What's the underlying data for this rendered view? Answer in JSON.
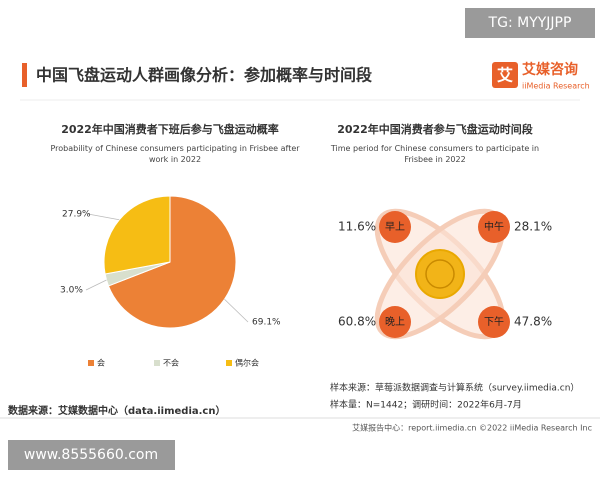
{
  "watermark_top": "TG: MYYJJPP",
  "watermark_bottom": "www.8555660.com",
  "header": {
    "title": "中国飞盘运动人群画像分析：参加概率与时间段",
    "logo_mark": "艾",
    "logo_cn": "艾媒咨询",
    "logo_en": "iiMedia Research"
  },
  "chart_data": [
    {
      "type": "pie",
      "title": "2022年中国消费者下班后参与飞盘运动概率",
      "subtitle": "Probability of Chinese consumers participating in Frisbee after work in 2022",
      "categories": [
        "会",
        "不会",
        "偶尔会"
      ],
      "values": [
        69.1,
        3.0,
        27.9
      ],
      "value_labels": [
        "69.1%",
        "3.0%",
        "27.9%"
      ],
      "colors": [
        "#ec8136",
        "#d8dfcd",
        "#f6bd14"
      ]
    },
    {
      "type": "orbit",
      "title": "2022年中国消费者参与飞盘运动时间段",
      "subtitle": "Time period for Chinese consumers to participate in Frisbee in 2022",
      "categories": [
        "早上",
        "中午",
        "晚上",
        "下午"
      ],
      "values": [
        11.6,
        28.1,
        60.8,
        47.8
      ],
      "value_labels": [
        "11.6%",
        "28.1%",
        "60.8%",
        "47.8%"
      ],
      "color": "#e8602a"
    }
  ],
  "notes": {
    "sample_source": "样本来源：草莓派数据调查与计算系统（survey.iimedia.cn）",
    "sample_size": "样本量：N=1442；调研时间：2022年6月-7月",
    "data_source": "数据来源：艾媒数据中心（data.iimedia.cn）",
    "footer": "艾媒报告中心：report.iimedia.cn  ©2022  iiMedia Research  Inc"
  }
}
